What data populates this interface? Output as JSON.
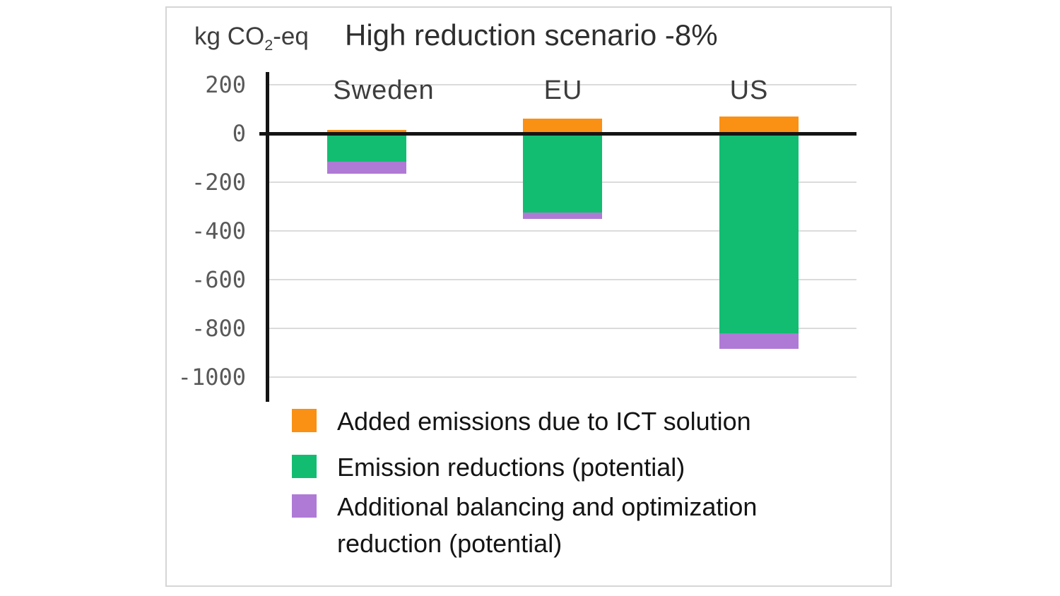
{
  "page": {
    "background": "#FFFFFF"
  },
  "card": {
    "border_color": "#D6D6D6"
  },
  "chart_data": {
    "type": "bar",
    "stacked": true,
    "title": "High reduction scenario -8%",
    "unit_label": {
      "prefix": "kg CO",
      "subscript": "2",
      "suffix": "-eq"
    },
    "categories": [
      "Sweden",
      "EU",
      "US"
    ],
    "series": [
      {
        "name": "Added emissions due to ICT solution",
        "color": "#FA9014",
        "values": [
          15,
          60,
          70
        ]
      },
      {
        "name": "Emission reductions (potential)",
        "color": "#12BD72",
        "values": [
          -115,
          -325,
          -820
        ]
      },
      {
        "name": "Additional balancing and optimization reduction (potential)",
        "color": "#AF7AD6",
        "values": [
          -50,
          -25,
          -65
        ]
      }
    ],
    "totals_net": [
      -150,
      -290,
      -815
    ],
    "yticks": [
      200,
      0,
      -200,
      -400,
      -600,
      -800,
      -1000
    ],
    "ylim": [
      -1100,
      250
    ],
    "grid": true,
    "legend_position": "bottom-left",
    "axis_color": "#141414",
    "gridline_color": "#DBDBDB",
    "tick_color": "#595959",
    "category_label_color": "#3D3D3D",
    "title_color": "#2E2E2E",
    "legend_text_color": "#141414"
  }
}
